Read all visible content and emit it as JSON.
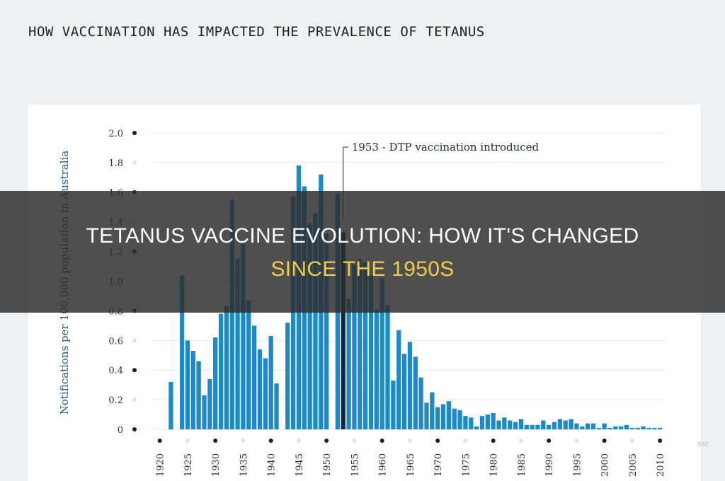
{
  "page_title": "HOW VACCINATION HAS IMPACTED THE PREVALENCE OF TETANUS",
  "overlay": {
    "line1": "TETANUS VACCINE EVOLUTION: HOW IT'S CHANGED",
    "line2": "SINCE THE 1950S"
  },
  "colors": {
    "bar": "#1c8ac6",
    "bar_highlight": "#0a2a44",
    "grid": "#e4e7ea",
    "axis_text": "#2a3340",
    "overlay_highlight": "#f2cd45"
  },
  "chart_data": {
    "type": "bar",
    "title": "",
    "xlabel": "",
    "ylabel": "Notifications per 100,000 population in Australia",
    "ylim": [
      0,
      2.0
    ],
    "yticks": [
      0,
      0.2,
      0.4,
      0.6,
      0.8,
      1.0,
      1.2,
      1.4,
      1.6,
      1.8,
      2.0
    ],
    "ytick_labels": [
      "0",
      "0.2",
      "0.4",
      "0.6",
      "0.8",
      "1.0",
      "1.2",
      "1.4",
      "1.6",
      "1.8",
      "2.0"
    ],
    "xlim": [
      1918,
      2011
    ],
    "xticks": [
      1920,
      1925,
      1930,
      1935,
      1940,
      1945,
      1950,
      1955,
      1960,
      1965,
      1970,
      1975,
      1980,
      1985,
      1990,
      1995,
      2000,
      2005,
      2010
    ],
    "xtick_labels": [
      "1920",
      "1925",
      "1930",
      "1935",
      "1940",
      "1945",
      "1950",
      "1955",
      "1960",
      "1965",
      "1970",
      "1975",
      "1980",
      "1985",
      "1990",
      "1995",
      "2000",
      "2005",
      "2010"
    ],
    "grid": true,
    "x": [
      1922,
      1924,
      1925,
      1926,
      1927,
      1928,
      1929,
      1930,
      1931,
      1932,
      1933,
      1934,
      1935,
      1936,
      1937,
      1938,
      1939,
      1940,
      1941,
      1943,
      1944,
      1945,
      1946,
      1947,
      1948,
      1949,
      1950,
      1952,
      1953,
      1954,
      1955,
      1956,
      1957,
      1958,
      1959,
      1960,
      1961,
      1962,
      1963,
      1964,
      1965,
      1966,
      1967,
      1968,
      1969,
      1970,
      1971,
      1972,
      1973,
      1974,
      1975,
      1976,
      1977,
      1978,
      1979,
      1980,
      1981,
      1982,
      1983,
      1984,
      1985,
      1986,
      1987,
      1988,
      1989,
      1990,
      1991,
      1992,
      1993,
      1994,
      1995,
      1996,
      1997,
      1998,
      1999,
      2000,
      2001,
      2002,
      2003,
      2004,
      2005,
      2006,
      2007,
      2008,
      2009,
      2010
    ],
    "values": [
      0.32,
      1.04,
      0.6,
      0.53,
      0.46,
      0.23,
      0.34,
      0.62,
      0.78,
      0.83,
      1.55,
      1.15,
      1.25,
      0.87,
      0.7,
      0.54,
      0.48,
      0.63,
      0.31,
      0.72,
      1.57,
      1.78,
      1.64,
      1.39,
      1.46,
      1.72,
      1.32,
      1.59,
      1.33,
      0.88,
      1.11,
      1.15,
      1.13,
      1.04,
      0.81,
      1.02,
      0.84,
      0.33,
      0.67,
      0.51,
      0.59,
      0.49,
      0.35,
      0.18,
      0.25,
      0.15,
      0.17,
      0.19,
      0.14,
      0.13,
      0.09,
      0.08,
      0.02,
      0.09,
      0.1,
      0.11,
      0.06,
      0.08,
      0.06,
      0.05,
      0.07,
      0.03,
      0.03,
      0.03,
      0.06,
      0.03,
      0.05,
      0.07,
      0.06,
      0.07,
      0.04,
      0.02,
      0.04,
      0.04,
      0.01,
      0.04,
      0.01,
      0.02,
      0.02,
      0.03,
      0.01,
      0.01,
      0.02,
      0.01,
      0.01,
      0.01
    ],
    "highlight_x": 1953,
    "annotation": {
      "text": "1953 - DTP vaccination introduced",
      "x": 1953
    }
  },
  "watermark": "ssc"
}
